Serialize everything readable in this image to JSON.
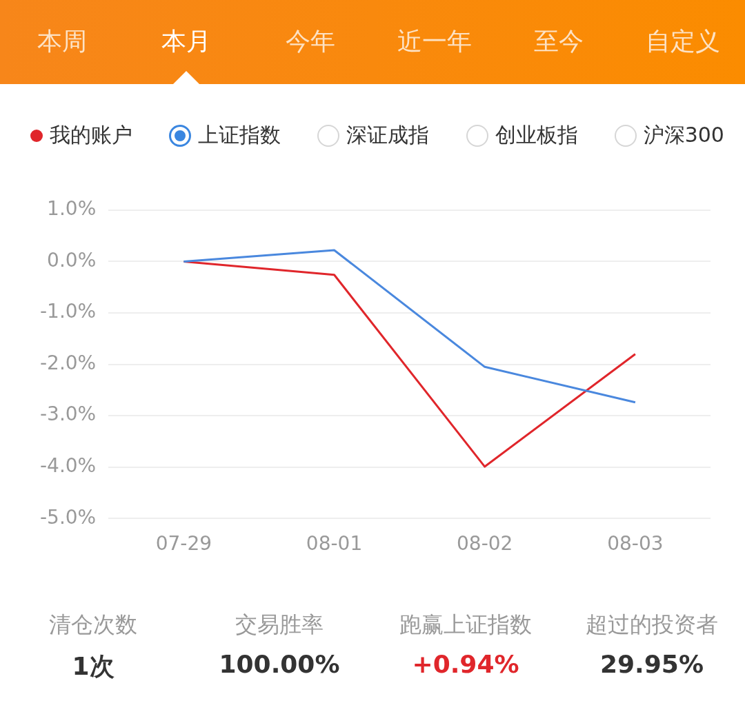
{
  "chart_data": {
    "type": "line",
    "categories": [
      "07-29",
      "08-01",
      "08-02",
      "08-03"
    ],
    "series": [
      {
        "name": "我的账户",
        "type": "line",
        "color": "#e0262b",
        "values": [
          0,
          -0.26,
          -3.99,
          -1.8
        ]
      },
      {
        "name": "上证指数",
        "type": "line",
        "color": "#4a88de",
        "values": [
          0,
          0.22,
          -2.05,
          -2.74
        ]
      }
    ],
    "ylim": [
      -5,
      1
    ],
    "yticks": [
      {
        "value": -5,
        "label": "-5.0%"
      },
      {
        "value": -4,
        "label": "-4.0%"
      },
      {
        "value": -3,
        "label": "-3.0%"
      },
      {
        "value": -2,
        "label": "-2.0%"
      },
      {
        "value": -1,
        "label": "-1.0%"
      },
      {
        "value": 0,
        "label": "0.0%"
      },
      {
        "value": 1,
        "label": "1.0%"
      }
    ],
    "grid": "y",
    "legend": "top",
    "marker": "none",
    "line_style": "solid",
    "annotations": [
      "本周",
      "本月",
      "今年",
      "近一年",
      "至今",
      "自定义",
      "深证成指",
      "创业板指",
      "沪深300",
      "清仓次数",
      "1次",
      "交易胜率",
      "100.00%",
      "跑赢上证指数",
      "+0.94%",
      "超过的投资者",
      "29.95%"
    ]
  }
}
